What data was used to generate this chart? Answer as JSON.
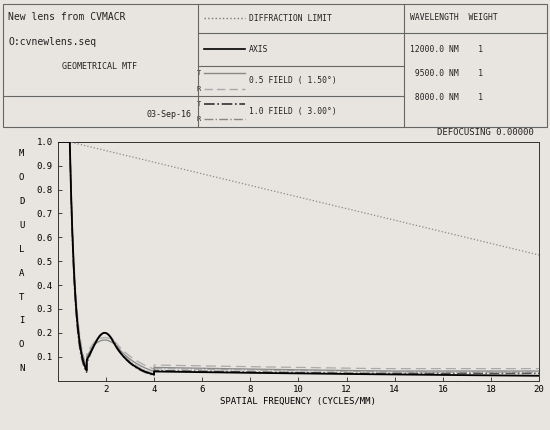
{
  "title_line1": "New lens from CVMACR",
  "title_line2": "O:cvnewlens.seq",
  "title_line3": "GEOMETRICAL MTF",
  "date": "03-Sep-16",
  "defocusing": "DEFOCUSING 0.00000",
  "xlabel": "SPATIAL FREQUENCY (CYCLES/MM)",
  "ylabel": "MODULATION",
  "xlim": [
    0,
    20
  ],
  "ylim": [
    0,
    1.0
  ],
  "xticks": [
    2.0,
    4.0,
    6.0,
    8.0,
    10.0,
    12.0,
    14.0,
    16.0,
    18.0,
    20.0
  ],
  "yticks": [
    0.1,
    0.2,
    0.3,
    0.4,
    0.5,
    0.6,
    0.7,
    0.8,
    0.9,
    1.0
  ],
  "wavelength_header": "WAVELENGTH  WEIGHT",
  "wavelengths": [
    "12000.0 NM    1",
    " 9500.0 NM    1",
    " 8000.0 NM    1"
  ],
  "bg_color": "#e8e5e0",
  "plot_bg": "#e8e5e0",
  "header_border_color": "#666666",
  "text_color": "#222222"
}
